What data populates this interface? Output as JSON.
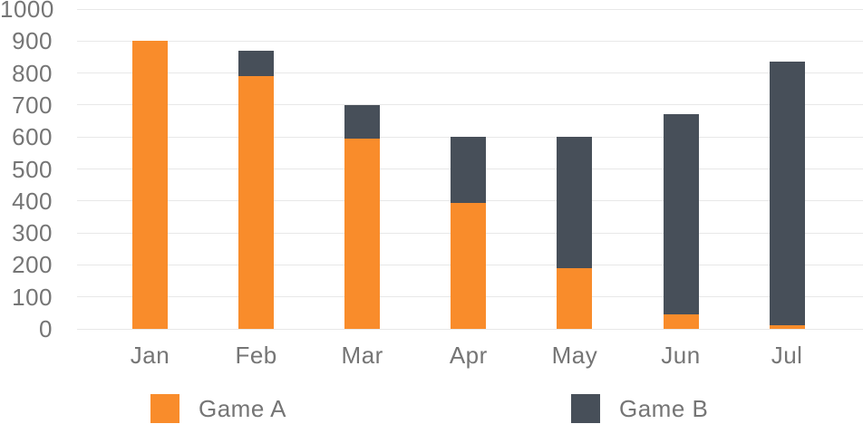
{
  "chart_data": {
    "type": "bar",
    "stacked": true,
    "title": "",
    "xlabel": "",
    "ylabel": "",
    "categories": [
      "Jan",
      "Feb",
      "Mar",
      "Apr",
      "May",
      "Jun",
      "Jul"
    ],
    "series": [
      {
        "name": "Game A",
        "color": "#F98C2B",
        "values": [
          900,
          790,
          595,
          395,
          190,
          45,
          10
        ]
      },
      {
        "name": "Game B",
        "color": "#474F59",
        "values": [
          0,
          80,
          105,
          205,
          410,
          625,
          825
        ]
      }
    ],
    "totals": [
      900,
      870,
      700,
      600,
      600,
      670,
      835
    ],
    "ylim": [
      0,
      1000
    ],
    "yticks": [
      0,
      100,
      200,
      300,
      400,
      500,
      600,
      700,
      800,
      900,
      1000
    ],
    "grid": true,
    "legend_position": "bottom",
    "background_color": "#FFFFFF",
    "text_color": "#757575",
    "grid_color": "#E8E8E8"
  },
  "legend": {
    "items": [
      {
        "label": "Game A",
        "color": "#F98C2B"
      },
      {
        "label": "Game B",
        "color": "#474F59"
      }
    ]
  }
}
